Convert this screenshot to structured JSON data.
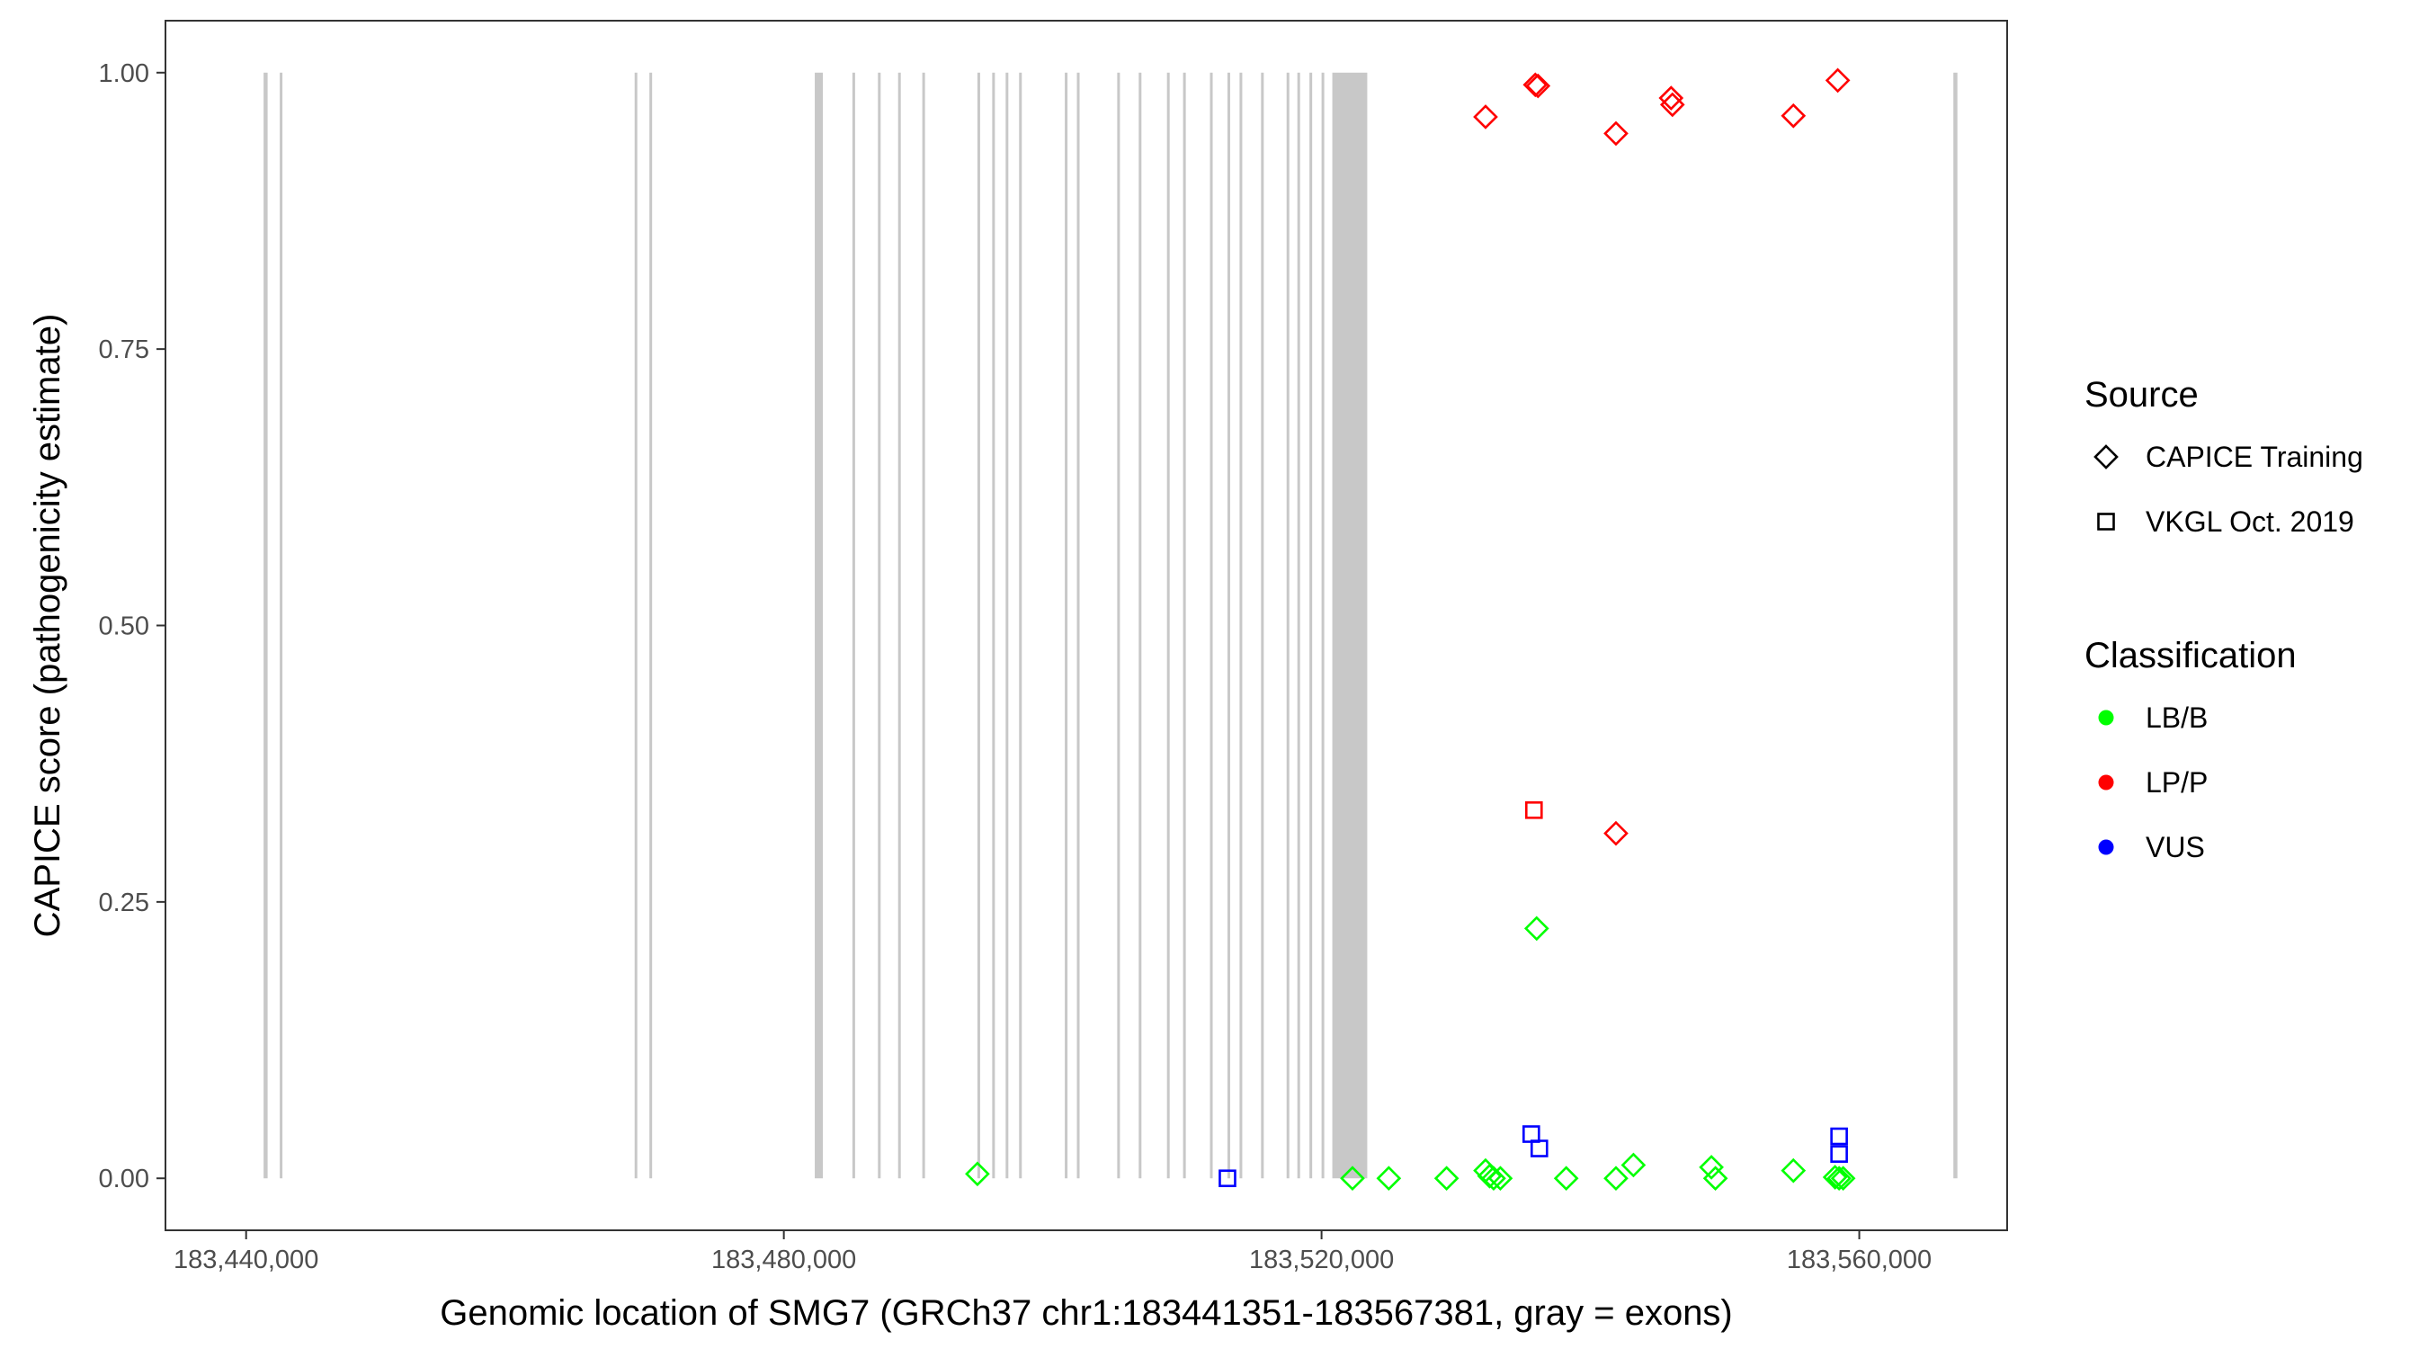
{
  "chart_data": {
    "type": "scatter",
    "title": "",
    "xlabel": "Genomic location of SMG7 (GRCh37 chr1:183441351-183567381, gray = exons)",
    "ylabel": "CAPICE score (pathogenicity estimate)",
    "xlim": [
      183434000,
      183571000
    ],
    "ylim": [
      -0.047,
      1.047
    ],
    "x_ticks": [
      183440000,
      183480000,
      183520000,
      183560000
    ],
    "x_tick_labels": [
      "183,440,000",
      "183,480,000",
      "183,520,000",
      "183,560,000"
    ],
    "y_ticks": [
      0,
      0.25,
      0.5,
      0.75,
      1.0
    ],
    "y_tick_labels": [
      "0.00",
      "0.25",
      "0.50",
      "0.75",
      "1.00"
    ],
    "grid": false,
    "exon_color": "#c8c8c8",
    "exons": [
      [
        183441300,
        183441600
      ],
      [
        183442500,
        183442700
      ],
      [
        183468900,
        183469100
      ],
      [
        183470000,
        183470200
      ],
      [
        183482300,
        183482900
      ],
      [
        183485100,
        183485300
      ],
      [
        183487000,
        183487200
      ],
      [
        183488500,
        183488700
      ],
      [
        183490300,
        183490500
      ],
      [
        183494400,
        183494600
      ],
      [
        183495500,
        183495700
      ],
      [
        183496500,
        183496700
      ],
      [
        183497500,
        183497700
      ],
      [
        183500900,
        183501100
      ],
      [
        183501800,
        183502000
      ],
      [
        183504800,
        183505000
      ],
      [
        183506400,
        183506600
      ],
      [
        183508500,
        183508700
      ],
      [
        183509700,
        183509900
      ],
      [
        183511700,
        183511900
      ],
      [
        183513000,
        183513200
      ],
      [
        183513900,
        183514100
      ],
      [
        183515500,
        183515700
      ],
      [
        183517400,
        183517600
      ],
      [
        183518200,
        183518400
      ],
      [
        183519100,
        183519300
      ],
      [
        183520000,
        183520200
      ],
      [
        183520800,
        183523400
      ],
      [
        183567000,
        183567300
      ]
    ],
    "legend_source": {
      "title": "Source",
      "items": [
        {
          "label": "CAPICE Training",
          "shape": "diamond"
        },
        {
          "label": "VKGL Oct. 2019",
          "shape": "square"
        }
      ]
    },
    "legend_classification": {
      "title": "Classification",
      "items": [
        {
          "label": "LB/B",
          "color": "#00ff00"
        },
        {
          "label": "LP/P",
          "color": "#ff0000"
        },
        {
          "label": "VUS",
          "color": "#0000ff"
        }
      ]
    },
    "legend_placement": "right",
    "points": [
      {
        "x": 183532200,
        "y": 0.96,
        "source": "CAPICE Training",
        "class": "LP/P"
      },
      {
        "x": 183535900,
        "y": 0.989,
        "source": "CAPICE Training",
        "class": "LP/P"
      },
      {
        "x": 183536100,
        "y": 0.988,
        "source": "CAPICE Training",
        "class": "LP/P"
      },
      {
        "x": 183541900,
        "y": 0.945,
        "source": "CAPICE Training",
        "class": "LP/P"
      },
      {
        "x": 183546000,
        "y": 0.977,
        "source": "CAPICE Training",
        "class": "LP/P"
      },
      {
        "x": 183546100,
        "y": 0.971,
        "source": "CAPICE Training",
        "class": "LP/P"
      },
      {
        "x": 183555100,
        "y": 0.961,
        "source": "CAPICE Training",
        "class": "LP/P"
      },
      {
        "x": 183558400,
        "y": 0.993,
        "source": "CAPICE Training",
        "class": "LP/P"
      },
      {
        "x": 183541900,
        "y": 0.312,
        "source": "CAPICE Training",
        "class": "LP/P"
      },
      {
        "x": 183535800,
        "y": 0.333,
        "source": "VKGL Oct. 2019",
        "class": "LP/P"
      },
      {
        "x": 183536000,
        "y": 0.226,
        "source": "CAPICE Training",
        "class": "LB/B"
      },
      {
        "x": 183494400,
        "y": 0.004,
        "source": "CAPICE Training",
        "class": "LB/B"
      },
      {
        "x": 183522300,
        "y": 0.0,
        "source": "CAPICE Training",
        "class": "LB/B"
      },
      {
        "x": 183525000,
        "y": 0.0,
        "source": "CAPICE Training",
        "class": "LB/B"
      },
      {
        "x": 183529300,
        "y": 0.0,
        "source": "CAPICE Training",
        "class": "LB/B"
      },
      {
        "x": 183532200,
        "y": 0.007,
        "source": "CAPICE Training",
        "class": "LB/B"
      },
      {
        "x": 183532500,
        "y": 0.002,
        "source": "CAPICE Training",
        "class": "LB/B"
      },
      {
        "x": 183532800,
        "y": 0.0,
        "source": "CAPICE Training",
        "class": "LB/B"
      },
      {
        "x": 183533300,
        "y": 0.0,
        "source": "CAPICE Training",
        "class": "LB/B"
      },
      {
        "x": 183538200,
        "y": 0.0,
        "source": "CAPICE Training",
        "class": "LB/B"
      },
      {
        "x": 183541900,
        "y": 0.0,
        "source": "CAPICE Training",
        "class": "LB/B"
      },
      {
        "x": 183543200,
        "y": 0.012,
        "source": "CAPICE Training",
        "class": "LB/B"
      },
      {
        "x": 183549000,
        "y": 0.01,
        "source": "CAPICE Training",
        "class": "LB/B"
      },
      {
        "x": 183549300,
        "y": 0.0,
        "source": "CAPICE Training",
        "class": "LB/B"
      },
      {
        "x": 183555100,
        "y": 0.007,
        "source": "CAPICE Training",
        "class": "LB/B"
      },
      {
        "x": 183558200,
        "y": 0.001,
        "source": "CAPICE Training",
        "class": "LB/B"
      },
      {
        "x": 183558500,
        "y": 0.0,
        "source": "CAPICE Training",
        "class": "LB/B"
      },
      {
        "x": 183558800,
        "y": 0.0,
        "source": "CAPICE Training",
        "class": "LB/B"
      },
      {
        "x": 183513000,
        "y": 0.0,
        "source": "VKGL Oct. 2019",
        "class": "VUS"
      },
      {
        "x": 183535600,
        "y": 0.04,
        "source": "VKGL Oct. 2019",
        "class": "VUS"
      },
      {
        "x": 183536200,
        "y": 0.027,
        "source": "VKGL Oct. 2019",
        "class": "VUS"
      },
      {
        "x": 183558500,
        "y": 0.038,
        "source": "VKGL Oct. 2019",
        "class": "VUS"
      },
      {
        "x": 183558500,
        "y": 0.022,
        "source": "VKGL Oct. 2019",
        "class": "VUS"
      }
    ]
  }
}
